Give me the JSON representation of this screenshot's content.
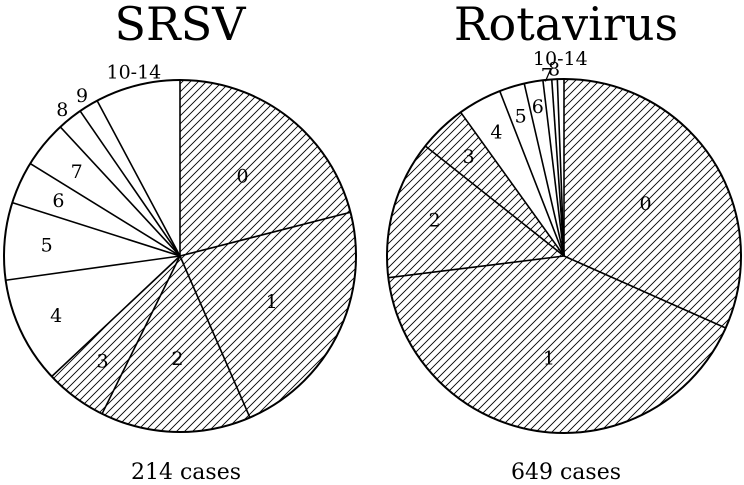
{
  "chart_data": [
    {
      "type": "pie",
      "title": "SRSV",
      "caption": "214 cases",
      "hatch_color": "#000000",
      "slices": [
        {
          "label": "0",
          "value": 21.0,
          "hatched": true
        },
        {
          "label": "1",
          "value": 22.5,
          "hatched": true
        },
        {
          "label": "2",
          "value": 13.8,
          "hatched": true
        },
        {
          "label": "3",
          "value": 5.7,
          "hatched": true
        },
        {
          "label": "4",
          "value": 9.8,
          "hatched": false
        },
        {
          "label": "5",
          "value": 7.1,
          "hatched": false
        },
        {
          "label": "6",
          "value": 3.9,
          "hatched": false
        },
        {
          "label": "7",
          "value": 4.3,
          "hatched": false
        },
        {
          "label": "8",
          "value": 2.3,
          "hatched": false
        },
        {
          "label": "9",
          "value": 1.8,
          "hatched": false
        },
        {
          "label": "10-14",
          "value": 7.8,
          "hatched": false
        }
      ]
    },
    {
      "type": "pie",
      "title": "Rotavirus",
      "caption": "649 cases",
      "hatch_color": "#000000",
      "slices": [
        {
          "label": "0",
          "value": 31.6,
          "hatched": true
        },
        {
          "label": "1",
          "value": 41.3,
          "hatched": true
        },
        {
          "label": "2",
          "value": 12.6,
          "hatched": true
        },
        {
          "label": "3",
          "value": 4.4,
          "hatched": true
        },
        {
          "label": "4",
          "value": 4.0,
          "hatched": false
        },
        {
          "label": "5",
          "value": 2.3,
          "hatched": false
        },
        {
          "label": "6",
          "value": 1.7,
          "hatched": false
        },
        {
          "label": "7",
          "value": 0.8,
          "hatched": false
        },
        {
          "label": "8",
          "value": 0.5,
          "hatched": false
        },
        {
          "label": "10-14",
          "value": 0.6,
          "hatched": false
        }
      ]
    }
  ]
}
